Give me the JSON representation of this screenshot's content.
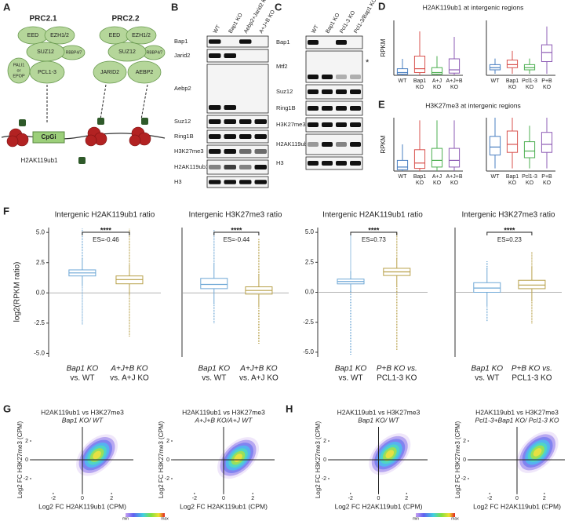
{
  "panel_labels": [
    "A",
    "B",
    "C",
    "D",
    "E",
    "F",
    "G",
    "H"
  ],
  "a": {
    "prc2_1": {
      "title": "PRC2.1",
      "subunits": [
        "EED",
        "EZH1/2",
        "SUZ12",
        "RBBP4/7",
        "PCL1-3"
      ],
      "accessory": [
        "PALI1",
        "or",
        "EPOP"
      ]
    },
    "prc2_2": {
      "title": "PRC2.2",
      "subunits": [
        "EED",
        "EZH1/2",
        "SUZ12",
        "RBBP4/7",
        "JARID2",
        "AEBP2"
      ]
    },
    "cpg": "CpGi",
    "mark": "H2AK119ub1"
  },
  "b": {
    "lanes": [
      "WT",
      "Bap1 KO",
      "Aebp2+Jarid2 KO",
      "A+J+B KO"
    ],
    "rows": [
      {
        "name": "Bap1",
        "signal": [
          1,
          0,
          1,
          0
        ]
      },
      {
        "name": "Jarid2",
        "signal": [
          1,
          1,
          0,
          0
        ]
      },
      {
        "name": "Aebp2",
        "signal": [
          1,
          1,
          0,
          0
        ]
      },
      {
        "name": "Suz12",
        "signal": [
          1,
          1,
          1,
          1
        ]
      },
      {
        "name": "Ring1B",
        "signal": [
          1,
          1,
          1,
          1
        ]
      },
      {
        "name": "H3K27me3",
        "signal": [
          1,
          1,
          0.6,
          0.6
        ]
      },
      {
        "name": "H2AK119ub1",
        "signal": [
          0.5,
          0.8,
          0.5,
          1
        ]
      },
      {
        "name": "H3",
        "signal": [
          1,
          1,
          1,
          1
        ]
      }
    ]
  },
  "c": {
    "lanes": [
      "WT",
      "Bap1 KO",
      "Pcl1-3 KO",
      "Pcl1-3/Bap1 KO"
    ],
    "note": "*",
    "rows": [
      {
        "name": "Bap1",
        "signal": [
          1,
          0,
          1,
          0
        ]
      },
      {
        "name": "Mtf2",
        "signal": [
          1,
          1,
          0.3,
          0.3
        ]
      },
      {
        "name": "Suz12",
        "signal": [
          1,
          1,
          1,
          1
        ]
      },
      {
        "name": "Ring1B",
        "signal": [
          1,
          1,
          1,
          1
        ]
      },
      {
        "name": "H3K27me3",
        "signal": [
          1,
          1,
          1,
          1
        ]
      },
      {
        "name": "H2AK119ub1",
        "signal": [
          0.4,
          1,
          0.5,
          1
        ]
      },
      {
        "name": "H3",
        "signal": [
          1,
          1,
          1,
          1
        ]
      }
    ]
  },
  "d": {
    "title": "H2AK119ub1 at intergenic regions",
    "ylabel": "RPKM",
    "plots": [
      {
        "ylim": [
          0,
          1
        ],
        "groups": [
          {
            "label": [
              "WT"
            ],
            "color": "#4a7fc1",
            "box": {
              "whisker_low": 0,
              "q1": 0.02,
              "median": 0.05,
              "q3": 0.12,
              "whisker_high": 0.3
            }
          },
          {
            "label": [
              "Bap1",
              "KO"
            ],
            "color": "#d9534f",
            "box": {
              "whisker_low": 0,
              "q1": 0.05,
              "median": 0.12,
              "q3": 0.35,
              "whisker_high": 0.8
            }
          },
          {
            "label": [
              "A+J",
              "KO"
            ],
            "color": "#4caf50",
            "box": {
              "whisker_low": 0,
              "q1": 0.02,
              "median": 0.05,
              "q3": 0.14,
              "whisker_high": 0.35
            }
          },
          {
            "label": [
              "A+J+B",
              "KO"
            ],
            "color": "#8e5cb5",
            "box": {
              "whisker_low": 0,
              "q1": 0.04,
              "median": 0.1,
              "q3": 0.3,
              "whisker_high": 0.7
            }
          }
        ]
      },
      {
        "ylim": [
          0,
          1.8
        ],
        "groups": [
          {
            "label": [
              "WT"
            ],
            "color": "#4a7fc1",
            "box": {
              "whisker_low": 0.05,
              "q1": 0.18,
              "median": 0.25,
              "q3": 0.35,
              "whisker_high": 0.55
            }
          },
          {
            "label": [
              "Bap1",
              "KO"
            ],
            "color": "#d9534f",
            "box": {
              "whisker_low": 0.05,
              "q1": 0.25,
              "median": 0.35,
              "q3": 0.5,
              "whisker_high": 0.8
            }
          },
          {
            "label": [
              "Pcl1-3",
              "KO"
            ],
            "color": "#4caf50",
            "box": {
              "whisker_low": 0.05,
              "q1": 0.18,
              "median": 0.25,
              "q3": 0.35,
              "whisker_high": 0.55
            }
          },
          {
            "label": [
              "P+B",
              "KO"
            ],
            "color": "#8e5cb5",
            "box": {
              "whisker_low": 0.05,
              "q1": 0.45,
              "median": 0.75,
              "q3": 1.0,
              "whisker_high": 1.6
            }
          }
        ]
      }
    ]
  },
  "e": {
    "title": "H3K27me3 at intergenic regions",
    "ylabel": "RPKM",
    "plots": [
      {
        "ylim": [
          0,
          0.2
        ],
        "groups": [
          {
            "label": [
              "WT"
            ],
            "color": "#4a7fc1",
            "box": {
              "whisker_low": 0,
              "q1": 0.005,
              "median": 0.015,
              "q3": 0.04,
              "whisker_high": 0.1
            }
          },
          {
            "label": [
              "Bap1",
              "KO"
            ],
            "color": "#d9534f",
            "box": {
              "whisker_low": 0,
              "q1": 0.01,
              "median": 0.03,
              "q3": 0.08,
              "whisker_high": 0.19
            }
          },
          {
            "label": [
              "A+J",
              "KO"
            ],
            "color": "#4caf50",
            "box": {
              "whisker_low": 0,
              "q1": 0.015,
              "median": 0.04,
              "q3": 0.085,
              "whisker_high": 0.19
            }
          },
          {
            "label": [
              "A+J+B",
              "KO"
            ],
            "color": "#8e5cb5",
            "box": {
              "whisker_low": 0,
              "q1": 0.015,
              "median": 0.04,
              "q3": 0.085,
              "whisker_high": 0.19
            }
          }
        ]
      },
      {
        "ylim": [
          0,
          0.2
        ],
        "groups": [
          {
            "label": [
              "WT"
            ],
            "color": "#4a7fc1",
            "box": {
              "whisker_low": 0.01,
              "q1": 0.06,
              "median": 0.09,
              "q3": 0.13,
              "whisker_high": 0.2
            }
          },
          {
            "label": [
              "Bap1",
              "KO"
            ],
            "color": "#d9534f",
            "box": {
              "whisker_low": 0.01,
              "q1": 0.07,
              "median": 0.1,
              "q3": 0.15,
              "whisker_high": 0.2
            }
          },
          {
            "label": [
              "Pcl1-3",
              "KO"
            ],
            "color": "#4caf50",
            "box": {
              "whisker_low": 0.01,
              "q1": 0.05,
              "median": 0.075,
              "q3": 0.11,
              "whisker_high": 0.17
            }
          },
          {
            "label": [
              "P+B",
              "KO"
            ],
            "color": "#8e5cb5",
            "box": {
              "whisker_low": 0.01,
              "q1": 0.07,
              "median": 0.1,
              "q3": 0.145,
              "whisker_high": 0.2
            }
          }
        ]
      }
    ]
  },
  "f": {
    "ylabel": "log2(RPKM ratio)",
    "plots": [
      {
        "title": "Intergenic H2AK119ub1 ratio",
        "ylim": [
          -5.3,
          5.4
        ],
        "yticks": [
          {
            "value": 5,
            "label": "5.0"
          },
          {
            "value": 2.5,
            "label": "2.5"
          },
          {
            "value": 0,
            "label": "0.0"
          },
          {
            "value": -2.5,
            "label": "-2.5"
          },
          {
            "value": -5,
            "label": "-5.0"
          }
        ],
        "stars": "****",
        "es": "ES=-0.46",
        "groups": [
          {
            "label": [
              "Bap1 KO",
              "vs. WT"
            ],
            "color": "#6fa8d6",
            "box": {
              "min": -2.6,
              "whisker_low": 0.6,
              "q1": 1.4,
              "median": 1.65,
              "q3": 1.9,
              "whisker_high": 2.8,
              "max": 5.3
            }
          },
          {
            "label": [
              "A+J+B KO",
              "vs. A+J KO"
            ],
            "color": "#b8a14a",
            "box": {
              "min": -3.6,
              "whisker_low": -0.2,
              "q1": 0.75,
              "median": 1.1,
              "q3": 1.4,
              "whisker_high": 2.3,
              "max": 5.3
            }
          }
        ]
      },
      {
        "title": "Intergenic H3K27me3 ratio",
        "ylim": [
          -5.3,
          5.4
        ],
        "stars": "****",
        "es": "ES=-0.44",
        "groups": [
          {
            "label": [
              "Bap1 KO",
              "vs. WT"
            ],
            "color": "#6fa8d6",
            "box": {
              "min": -2.5,
              "whisker_low": -0.9,
              "q1": 0.35,
              "median": 0.7,
              "q3": 1.2,
              "whisker_high": 2.4,
              "max": 5.2
            }
          },
          {
            "label": [
              "A+J+B KO",
              "vs. A+J KO"
            ],
            "color": "#b8a14a",
            "box": {
              "min": -4.2,
              "whisker_low": -1.2,
              "q1": -0.1,
              "median": 0.2,
              "q3": 0.5,
              "whisker_high": 1.5,
              "max": 4.5
            }
          }
        ]
      },
      {
        "title": "Intergenic H2AK119ub1 ratio",
        "ylim": [
          -5.4,
          5.4
        ],
        "yticks": [
          {
            "value": 5,
            "label": "5.0"
          },
          {
            "value": 2.5,
            "label": "2.5"
          },
          {
            "value": 0,
            "label": "0.0"
          },
          {
            "value": -2.5,
            "label": "-2.5"
          },
          {
            "value": -5,
            "label": "-5.0"
          }
        ],
        "stars": "****",
        "es": "ES=0.73",
        "groups": [
          {
            "label": [
              "Bap1 KO",
              "vs. WT"
            ],
            "color": "#6fa8d6",
            "box": {
              "min": -5.2,
              "whisker_low": 0.1,
              "q1": 0.7,
              "median": 0.9,
              "q3": 1.1,
              "whisker_high": 1.7,
              "max": 4.8
            }
          },
          {
            "label": [
              "P+B KO vs.",
              "PCL1-3 KO"
            ],
            "color": "#b8a14a",
            "box": {
              "min": -4.8,
              "whisker_low": 0.5,
              "q1": 1.4,
              "median": 1.7,
              "q3": 2.0,
              "whisker_high": 2.8,
              "max": 5.0
            }
          }
        ]
      },
      {
        "title": "Intergenic H3K27me3 ratio",
        "ylim": [
          -5.4,
          5.4
        ],
        "stars": "****",
        "es": "ES=0.23",
        "groups": [
          {
            "label": [
              "Bap1 KO",
              "vs. WT"
            ],
            "color": "#6fa8d6",
            "box": {
              "min": -2.4,
              "whisker_low": -1.2,
              "q1": 0.0,
              "median": 0.35,
              "q3": 0.8,
              "whisker_high": 2.0,
              "max": 2.6
            }
          },
          {
            "label": [
              "P+B KO vs.",
              "PCL1-3 KO"
            ],
            "color": "#b8a14a",
            "box": {
              "min": -2.6,
              "whisker_low": -0.7,
              "q1": 0.3,
              "median": 0.6,
              "q3": 1.0,
              "whisker_high": 2.1,
              "max": 3.4
            }
          }
        ]
      }
    ]
  },
  "g": {
    "colorbar": [
      "min",
      "max"
    ],
    "plots": [
      {
        "title": [
          "H2AK119ub1 vs H3K27me3",
          "Bap1 KO/ WT"
        ],
        "xlabel": "Log2 FC H2AK119ub1 (CPM)",
        "ylabel": "Log2 FC H3K27me3 (CPM)",
        "xlim": [
          -3.5,
          3.5
        ],
        "ylim": [
          -3.5,
          3.5
        ],
        "xticks": [
          -2,
          0,
          2
        ],
        "yticks": [
          -2,
          0,
          2
        ],
        "center": [
          1.0,
          0.5
        ]
      },
      {
        "title": [
          "H2AK119ub1 vs H3K27me3",
          "A+J+B KO/A+J WT"
        ],
        "xlabel": "Log2 FC H2AK119ub1 (CPM)",
        "ylabel": "Log2 FC H3K27me3 (CPM)",
        "xlim": [
          -3.5,
          3.5
        ],
        "ylim": [
          -3.5,
          3.5
        ],
        "xticks": [
          -2,
          0,
          2
        ],
        "yticks": [
          -2,
          0,
          2
        ],
        "center": [
          1.0,
          0.2
        ]
      }
    ]
  },
  "h": {
    "colorbar": [
      "min",
      "max"
    ],
    "plots": [
      {
        "title": [
          "H2AK119ub1 vs H3K27me3",
          "Bap1 KO/ WT"
        ],
        "xlabel": "Log2 FC H2AK119ub1 (CPM)",
        "ylabel": "Log2 FC H3K27me3 (CPM)",
        "xlim": [
          -3.5,
          3.5
        ],
        "ylim": [
          -3.5,
          3.5
        ],
        "xticks": [
          -2,
          0,
          2
        ],
        "yticks": [
          -2,
          0,
          2
        ],
        "center": [
          0.8,
          0.6
        ]
      },
      {
        "title": [
          "H2AK119ub1 vs H3K27me3",
          "Pcl1-3+Bap1 KO/ Pcl1-3 KO"
        ],
        "xlabel": "Log2 FC H2AK119ub1 (CPM)",
        "ylabel": "Log2 FC H3K27me3 (CPM)",
        "xlim": [
          -3.5,
          3.5
        ],
        "ylim": [
          -3.5,
          3.5
        ],
        "xticks": [
          -2,
          0,
          2
        ],
        "yticks": [
          -2,
          0,
          2
        ],
        "center": [
          1.5,
          0.8
        ]
      }
    ]
  }
}
